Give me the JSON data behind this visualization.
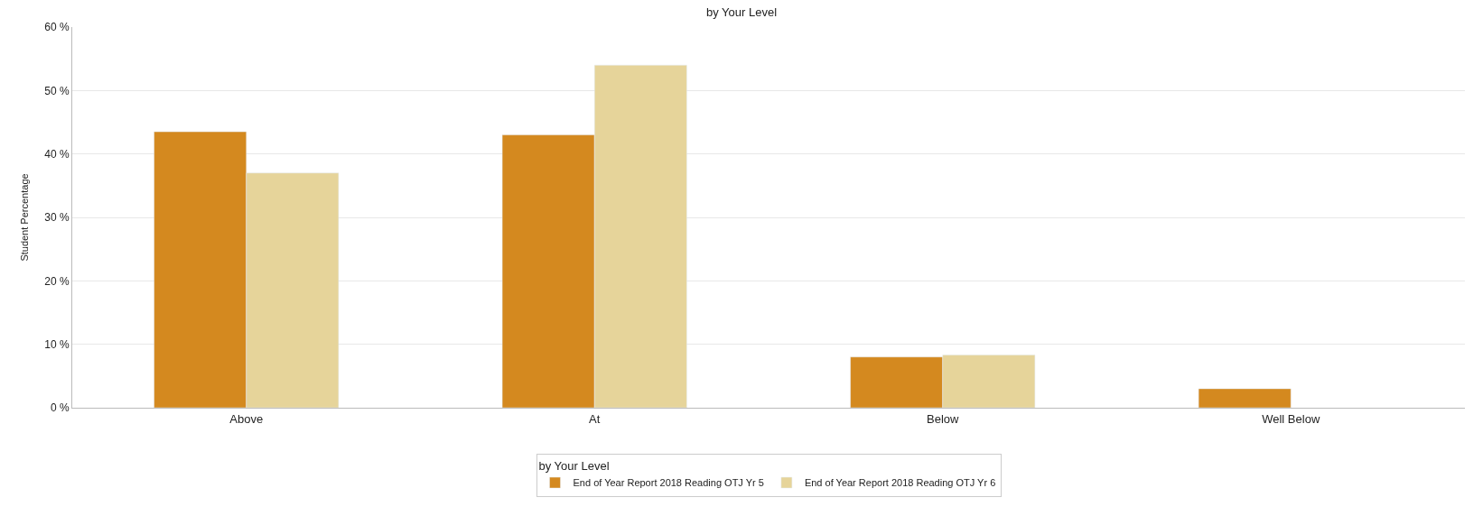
{
  "chart_data": {
    "type": "bar",
    "title": "by Your Level",
    "ylabel": "Student Percentage",
    "legend_title": "by Your Level",
    "categories": [
      "Above",
      "At",
      "Below",
      "Well Below"
    ],
    "series": [
      {
        "name": "End of Year Report 2018 Reading OTJ Yr 5",
        "color": "#d4891f",
        "values": [
          43.5,
          43,
          8,
          3
        ]
      },
      {
        "name": "End of Year Report 2018 Reading OTJ Yr 6",
        "color": "#e6d49a",
        "values": [
          37,
          54,
          8.3,
          null
        ]
      }
    ],
    "ylim": [
      0,
      60
    ],
    "yticks": [
      {
        "value": 0,
        "label": "0 %"
      },
      {
        "value": 10,
        "label": "10 %"
      },
      {
        "value": 20,
        "label": "20 %"
      },
      {
        "value": 30,
        "label": "30 %"
      },
      {
        "value": 40,
        "label": "40 %"
      },
      {
        "value": 50,
        "label": "50 %"
      },
      {
        "value": 60,
        "label": "60 %"
      }
    ],
    "grid": "y",
    "legend": "bottom"
  }
}
